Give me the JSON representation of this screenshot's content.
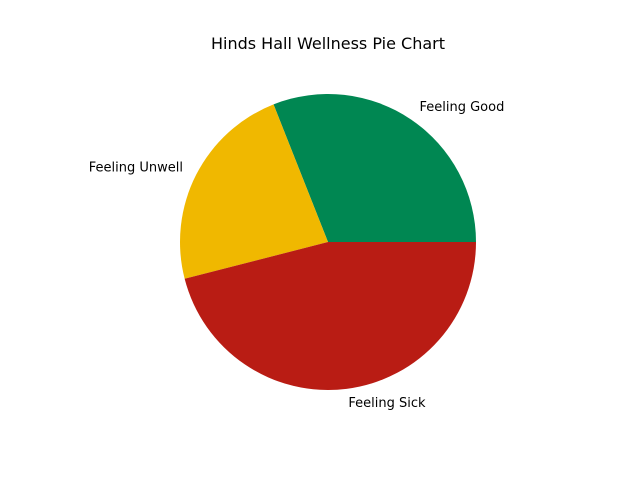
{
  "chart_data": {
    "type": "pie",
    "title": "Hinds Hall Wellness Pie Chart",
    "categories": [
      "Feeling Good",
      "Feeling Unwell",
      "Feeling Sick"
    ],
    "values": [
      31,
      23,
      46
    ],
    "colors": [
      "#008752",
      "#F0B800",
      "#B91C14"
    ],
    "start_angle_deg": 0,
    "direction": "counterclockwise",
    "legend": "none"
  }
}
